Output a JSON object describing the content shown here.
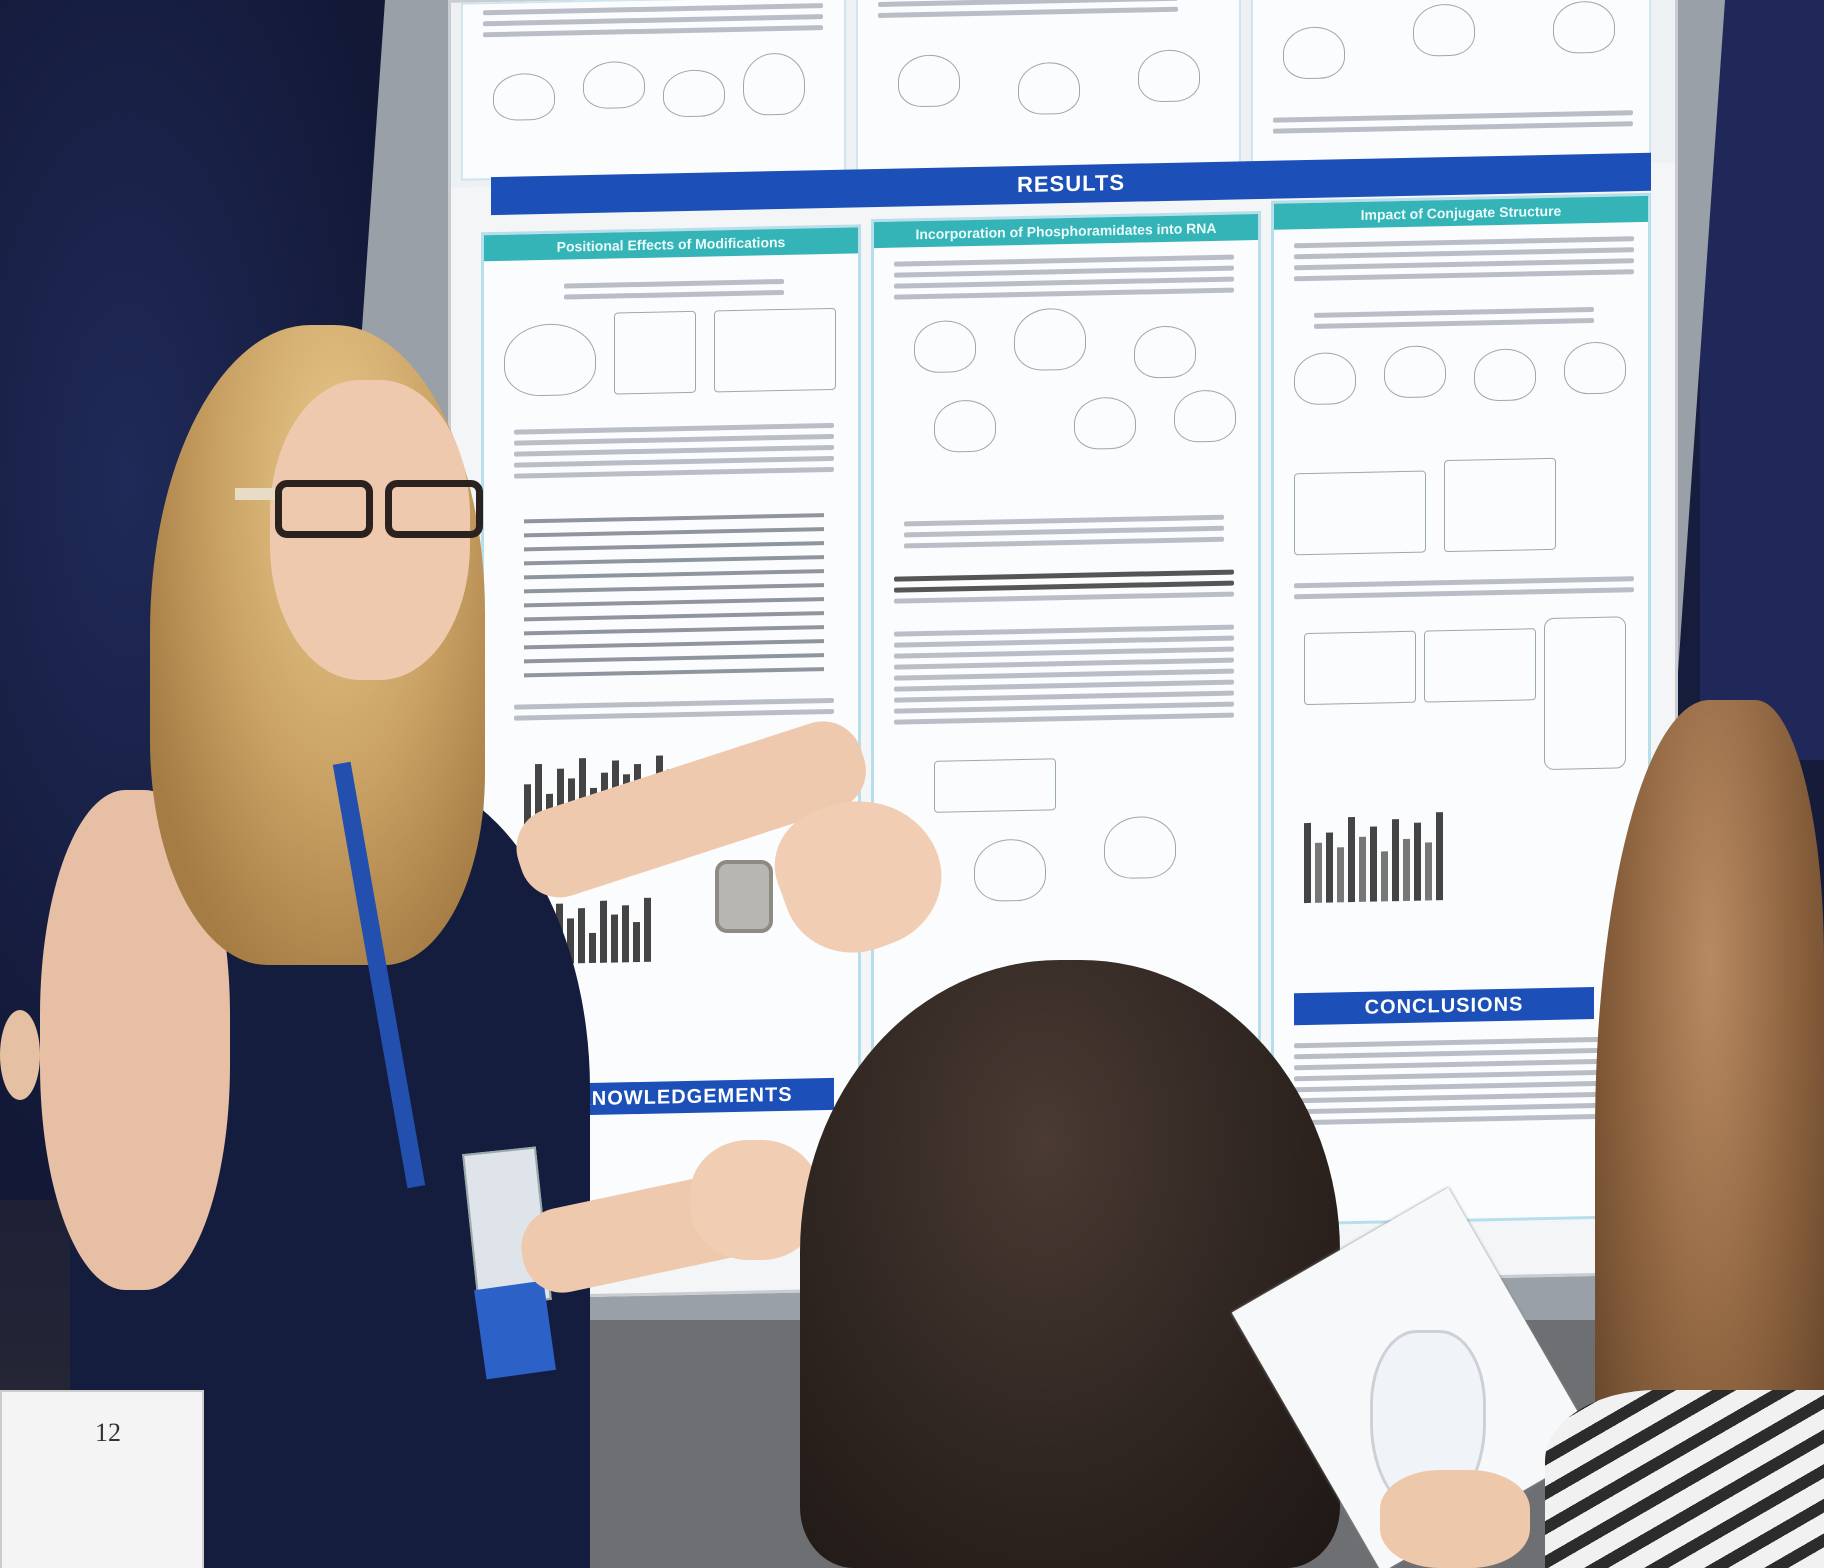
{
  "poster": {
    "results_banner": "RESULTS",
    "col1_header": "Positional Effects of Modifications",
    "col2_header": "Incorporation of Phosphoramidates into RNA",
    "col3_header": "Impact of Conjugate Structure",
    "acknowledgements_header": "ACKNOWLEDGEMENTS",
    "conclusions_header": "CONCLUSIONS"
  },
  "program_booklet": {
    "page_number": "12"
  },
  "colors": {
    "poster_blue": "#1c4fb8",
    "poster_teal": "#35b4b8",
    "dress_navy": "#151d3e",
    "backdrop_navy": "#1a2145"
  }
}
